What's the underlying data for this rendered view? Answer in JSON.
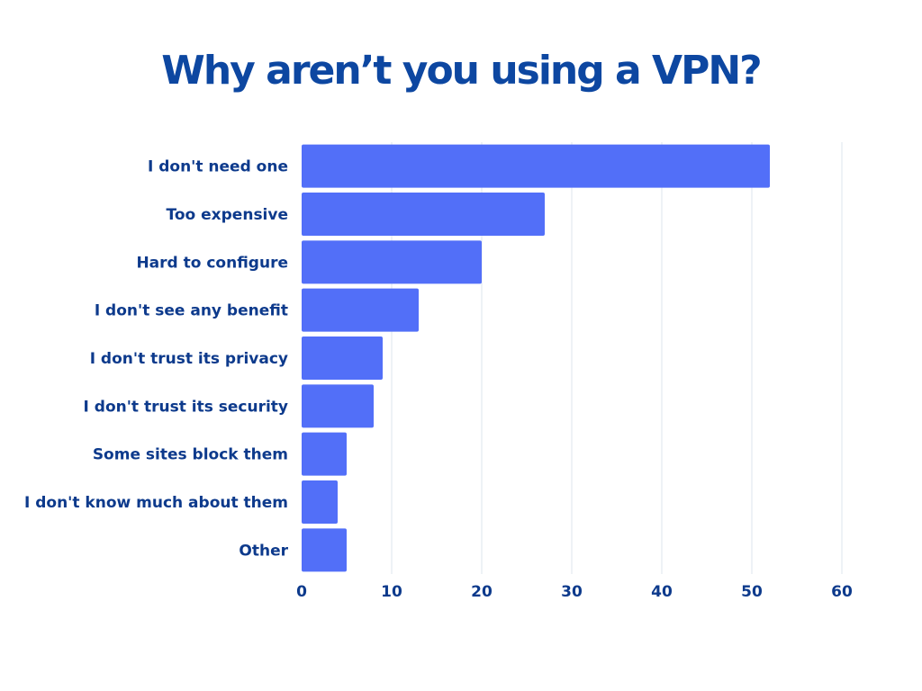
{
  "chart_data": {
    "type": "bar",
    "orientation": "horizontal",
    "title": "Why aren’t you using a VPN?",
    "categories": [
      "I don't need one",
      "Too expensive",
      "Hard to configure",
      "I don't see any benefit",
      "I don't trust its privacy",
      "I don't trust its security",
      "Some sites block them",
      "I don't know much about them",
      "Other"
    ],
    "values": [
      52,
      27,
      20,
      13,
      9,
      8,
      5,
      4,
      5
    ],
    "xlim": [
      0,
      60
    ],
    "x_ticks": [
      "0",
      "10",
      "20",
      "30",
      "40",
      "50",
      "60"
    ],
    "grid": "vertical",
    "legend": "none",
    "colors": {
      "bar": "#526ff8",
      "title": "#0d47a1",
      "labels": "#0d3a8c",
      "grid": "#dde6ee"
    }
  }
}
